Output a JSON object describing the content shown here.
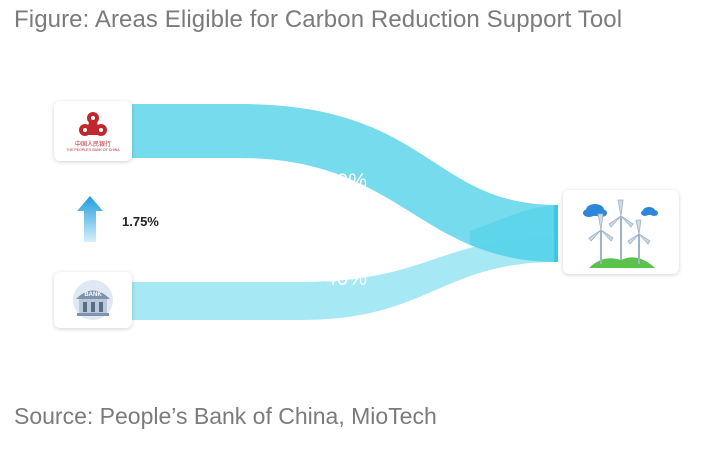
{
  "figure": {
    "title": "Figure: Areas Eligible for Carbon Reduction Support Tool",
    "source": "Source: People’s Bank of China, MioTech"
  },
  "flows": {
    "top_share": "60%",
    "bottom_share": "40%",
    "rate_label": "1.75%"
  },
  "logos": {
    "pboc_cn": "中国人民银行",
    "pboc_en": "THE PEOPLE'S BANK OF CHINA",
    "bank_sign": "BANK"
  },
  "colors": {
    "flow_top": "#6fd9ec",
    "flow_bottom": "#a6e8f3",
    "arrow": "#2fa6e0",
    "pboc_red": "#c0282d"
  },
  "icons": [
    "pboc-logo-icon",
    "bank-building-icon",
    "wind-turbines-icon",
    "up-arrow-icon"
  ]
}
